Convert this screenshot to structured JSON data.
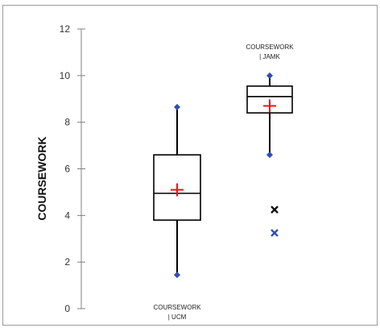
{
  "chart_data": {
    "type": "boxplot",
    "title": "",
    "xlabel": "",
    "ylabel": "COURSEWORK",
    "ylim": [
      0,
      12
    ],
    "y_ticks": [
      0,
      2,
      4,
      6,
      8,
      10,
      12
    ],
    "grid": false,
    "legend": "none",
    "series": [
      {
        "name_lines": [
          "COURSEWORK",
          "| UCM"
        ],
        "min": 1.45,
        "q1": 3.8,
        "median": 4.95,
        "q3": 6.6,
        "max": 8.65,
        "mean": 5.1,
        "outliers": []
      },
      {
        "name_lines": [
          "COURSEWORK",
          "| JAMK"
        ],
        "min": 6.6,
        "q1": 8.4,
        "median": 9.1,
        "q3": 9.55,
        "max": 10.0,
        "mean": 8.7,
        "outliers": [
          {
            "value": 4.25,
            "marker": "black-x"
          },
          {
            "value": 3.25,
            "marker": "blue-x"
          }
        ]
      }
    ],
    "colors": {
      "box": "#000000",
      "whisker_end": "#2e4fb5",
      "mean_marker": "#e8141b",
      "outlier_black": "#111111",
      "outlier_blue": "#2e4fb5",
      "axis": "#808080"
    }
  }
}
